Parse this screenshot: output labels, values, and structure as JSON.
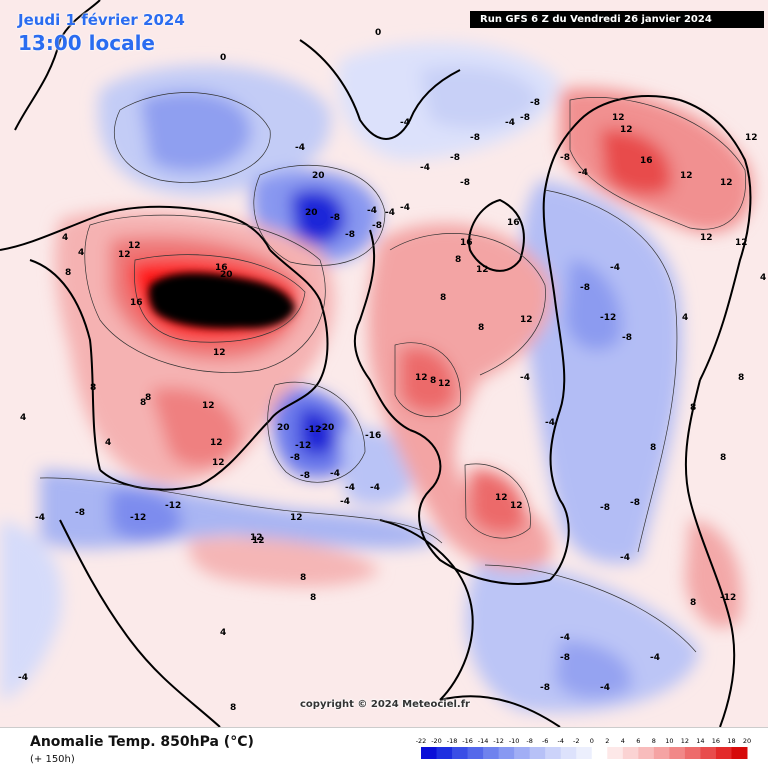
{
  "header": {
    "date": "Jeudi 1 février 2024",
    "local_time": "13:00 locale",
    "run_info": "Run GFS 6 Z du Vendredi 26 janvier 2024"
  },
  "footer": {
    "copyright": "copyright © 2024 Meteociel.fr",
    "parameter": "Anomalie Temp. 850hPa (°C)",
    "lead_time": "(+ 150h)"
  },
  "legend": {
    "ticks": [
      "-22",
      "-20",
      "-18",
      "-16",
      "-14",
      "-12",
      "-10",
      "-8",
      "-6",
      "-4",
      "-2",
      "0",
      "2",
      "4",
      "6",
      "8",
      "10",
      "12",
      "14",
      "16",
      "18",
      "20"
    ],
    "colors": [
      "#0a0fd8",
      "#1e2fe0",
      "#3a4ee6",
      "#5468ea",
      "#6f82ee",
      "#8899f2",
      "#a1aef5",
      "#b7c1f7",
      "#ccd3fa",
      "#dde2fc",
      "#eceffd",
      "#ffffff",
      "#fde8e8",
      "#fbd3d3",
      "#f8bcbc",
      "#f5a3a3",
      "#f18888",
      "#ed6c6c",
      "#e84c4c",
      "#e32a2a",
      "#d60a0a"
    ]
  },
  "contour_labels": [
    "0",
    "0",
    "-4",
    "-4",
    "-8",
    "-8",
    "-4",
    "-8",
    "-8",
    "-8",
    "-4",
    "12",
    "12",
    "16",
    "12",
    "-4",
    "-8",
    "16",
    "20",
    "12",
    "16",
    "20",
    "20",
    "-4",
    "-8",
    "4",
    "4",
    "8",
    "12",
    "8",
    "12",
    "4",
    "12",
    "8",
    "12",
    "16",
    "8",
    "12",
    "16",
    "8",
    "12",
    "8",
    "12",
    "12",
    "-4",
    "-4",
    "-8",
    "-8",
    "-4",
    "-4",
    "-12",
    "-4",
    "-4",
    "4",
    "8",
    "12",
    "8",
    "12",
    "12",
    "4",
    "12",
    "12",
    "8",
    "-8",
    "-12",
    "-12",
    "-20",
    "20",
    "-16",
    "-8",
    "-4",
    "-4",
    "12",
    "-12",
    "-8",
    "-4",
    "-8",
    "8",
    "12",
    "12",
    "8",
    "-4",
    "-8",
    "-12",
    "-4",
    "-8",
    "-4",
    "-4",
    "-4",
    "-8",
    "8",
    "8",
    "4",
    "12",
    "8",
    "-12",
    "-8",
    "-4",
    "-8",
    "8",
    "12",
    "4",
    "8"
  ]
}
